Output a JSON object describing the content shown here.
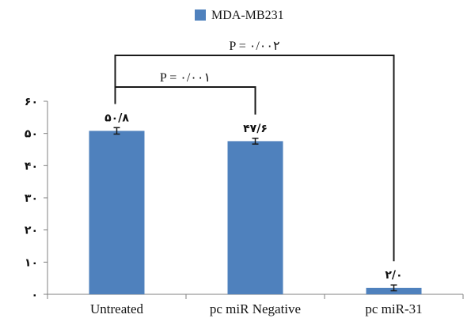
{
  "chart_data": {
    "type": "bar",
    "categories": [
      "Untreated",
      "pc miR Negative",
      "pc miR-31"
    ],
    "series": [
      {
        "name": "MDA-MB231",
        "values": [
          50.8,
          47.6,
          2.0
        ],
        "errors": [
          1.0,
          0.9,
          0.9
        ],
        "value_labels": [
          "۵۰/۸",
          "۴۷/۶",
          "۲/۰"
        ],
        "color": "#4f81bd"
      }
    ],
    "ylim": [
      0,
      60
    ],
    "y_ticks": [
      0,
      10,
      20,
      30,
      40,
      50,
      60
    ],
    "y_tick_labels": [
      "۰",
      "۱۰",
      "۲۰",
      "۳۰",
      "۴۰",
      "۵۰",
      "۶۰"
    ],
    "grid": false,
    "legend_position": "top-center",
    "annotations": [
      {
        "text": "P = ۰/۰۰۱",
        "between": [
          0,
          1
        ]
      },
      {
        "text": "P = ۰/۰۰۲",
        "between": [
          0,
          2
        ]
      }
    ],
    "title": "",
    "xlabel": "",
    "ylabel": ""
  }
}
